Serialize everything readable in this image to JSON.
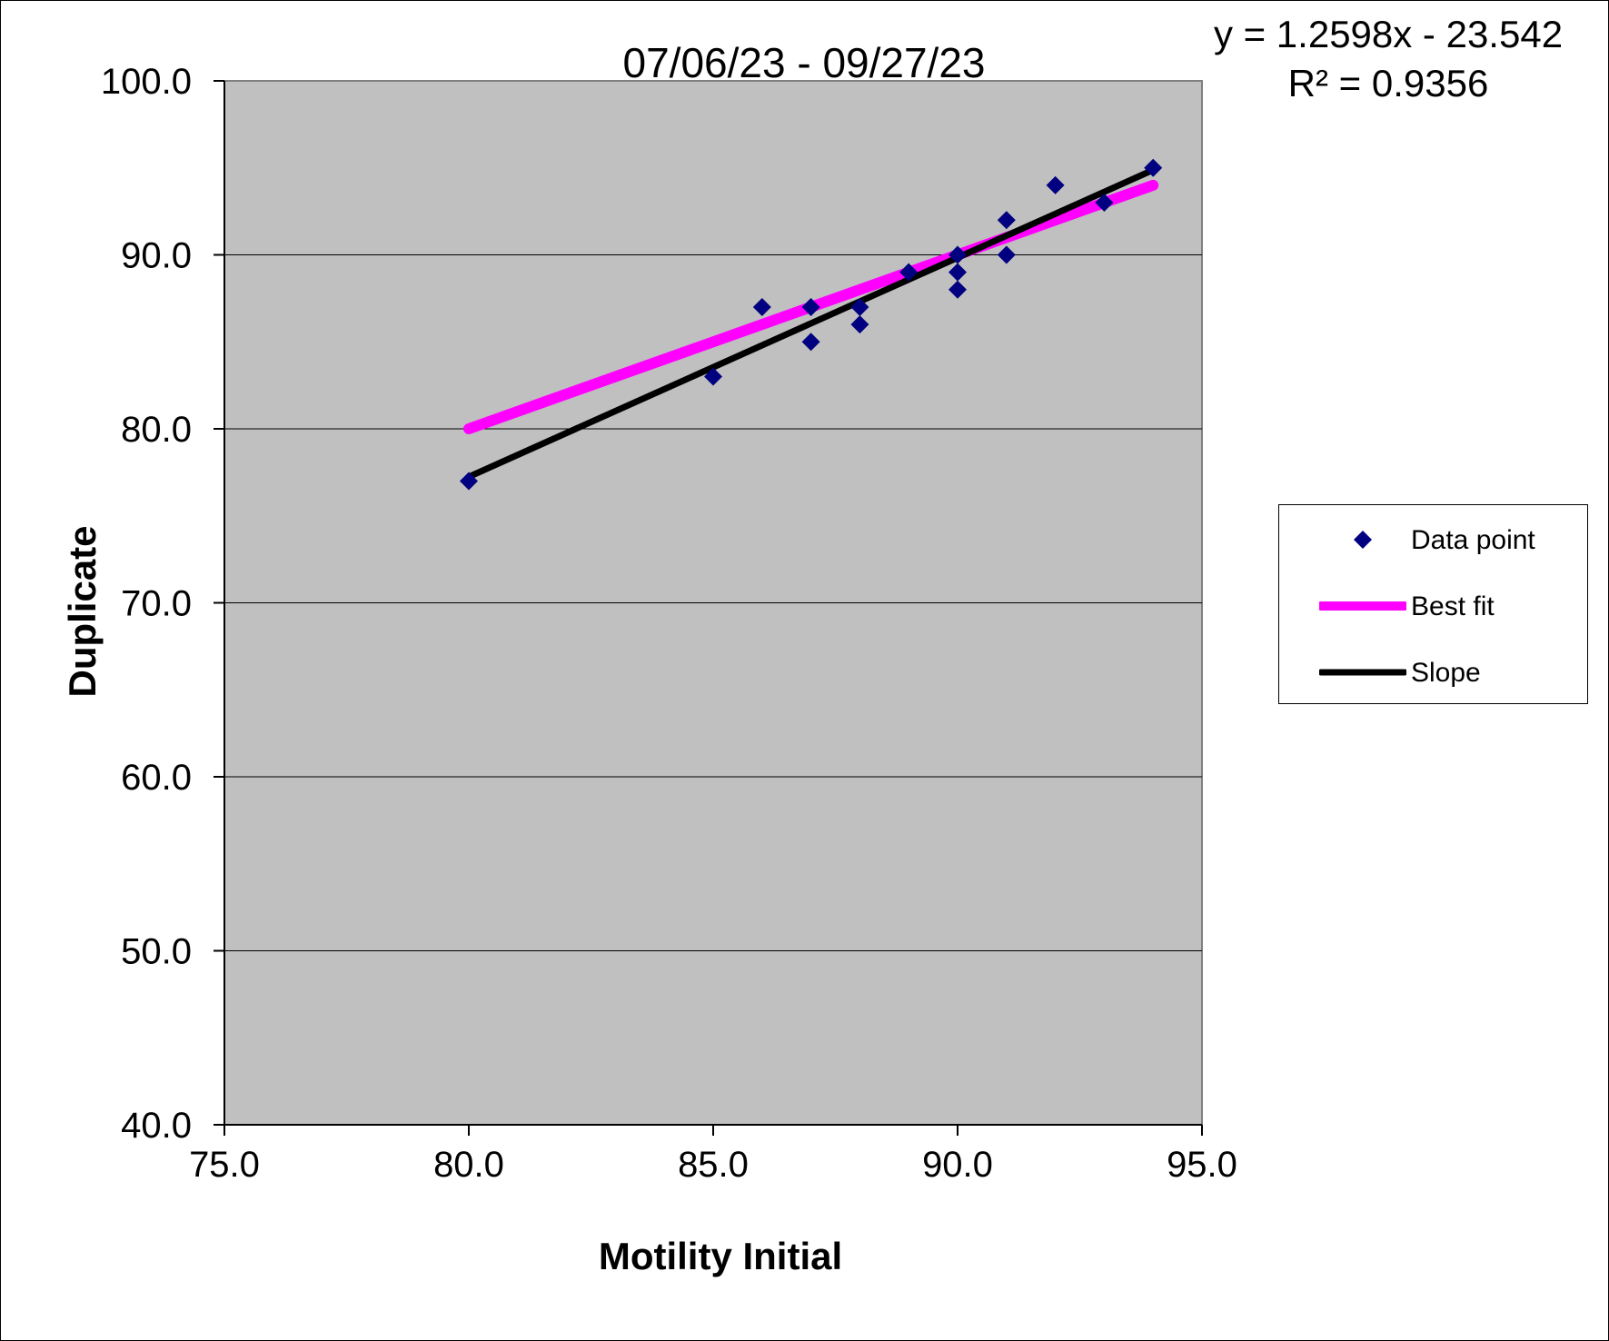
{
  "chart_data": {
    "type": "scatter",
    "title": "07/06/23 - 09/27/23",
    "xlabel": "Motility Initial",
    "ylabel": "Duplicate",
    "xlim": [
      75.0,
      95.0
    ],
    "ylim": [
      40.0,
      100.0
    ],
    "xticks": [
      "75.0",
      "80.0",
      "85.0",
      "90.0",
      "95.0"
    ],
    "yticks": [
      "40.0",
      "50.0",
      "60.0",
      "70.0",
      "80.0",
      "90.0",
      "100.0"
    ],
    "grid": "horizontal",
    "legend_position": "right",
    "series": [
      {
        "name": "Data point",
        "kind": "scatter",
        "color": "#000080",
        "x": [
          80,
          85,
          86,
          87,
          87,
          88,
          88,
          89,
          90,
          90,
          90,
          91,
          91,
          92,
          93,
          94
        ],
        "y": [
          77,
          83,
          87,
          87,
          85,
          87,
          86,
          89,
          90,
          89,
          88,
          92,
          90,
          94,
          93,
          95
        ]
      },
      {
        "name": "Best fit",
        "kind": "line",
        "color": "#ff00ff",
        "x": [
          80,
          94
        ],
        "y": [
          80,
          94
        ]
      },
      {
        "name": "Slope",
        "kind": "line",
        "color": "#000000",
        "x": [
          80,
          94
        ],
        "y": [
          77.242,
          94.879
        ]
      }
    ],
    "annotations": [
      "y = 1.2598x - 23.542",
      "R² = 0.9356"
    ],
    "plot_background": "#c0c0c0"
  }
}
